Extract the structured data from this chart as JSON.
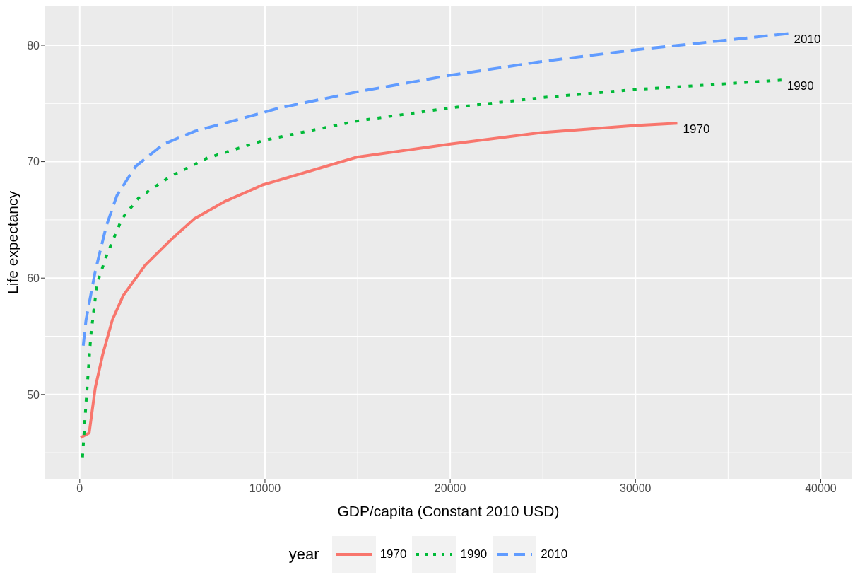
{
  "chart_data": {
    "type": "line",
    "xlabel": "GDP/capita (Constant 2010 USD)",
    "ylabel": "Life expectancy",
    "legend_title": "year",
    "xlim": [
      -1900,
      41700
    ],
    "ylim": [
      42.7,
      83.4
    ],
    "xticks": [
      0,
      10000,
      20000,
      30000,
      40000
    ],
    "yticks": [
      50,
      60,
      70,
      80
    ],
    "grid": true,
    "legend": "bottom",
    "marker": "none",
    "series": [
      {
        "name": "1970",
        "color": "#f8766d",
        "line_style": "solid",
        "x": [
          50,
          510,
          840,
          1250,
          1760,
          2350,
          3530,
          4930,
          6190,
          7860,
          9870,
          10740,
          14990,
          19920,
          24930,
          29980,
          32260
        ],
        "values": [
          46.3,
          46.7,
          50.6,
          53.5,
          56.4,
          58.5,
          61.1,
          63.3,
          65.1,
          66.6,
          68.0,
          68.4,
          70.4,
          71.5,
          72.5,
          73.1,
          73.3
        ]
      },
      {
        "name": "1990",
        "color": "#00ba38",
        "line_style": "dotted",
        "x": [
          150,
          340,
          600,
          930,
          1440,
          2280,
          3190,
          4860,
          6870,
          9870,
          10740,
          14990,
          19920,
          24930,
          29980,
          37880
        ],
        "values": [
          44.6,
          49.3,
          55.1,
          59.5,
          61.9,
          65.1,
          66.9,
          68.7,
          70.3,
          71.8,
          72.1,
          73.5,
          74.6,
          75.5,
          76.2,
          77.0
        ]
      },
      {
        "name": "2010",
        "color": "#619cff",
        "line_style": "dashed",
        "x": [
          190,
          340,
          840,
          1440,
          2010,
          3020,
          4520,
          6190,
          9870,
          10740,
          14990,
          19920,
          24930,
          29980,
          38250
        ],
        "values": [
          54.2,
          56.4,
          60.6,
          64.5,
          67.1,
          69.6,
          71.5,
          72.6,
          74.2,
          74.6,
          76.0,
          77.4,
          78.6,
          79.6,
          81.0
        ]
      }
    ]
  }
}
